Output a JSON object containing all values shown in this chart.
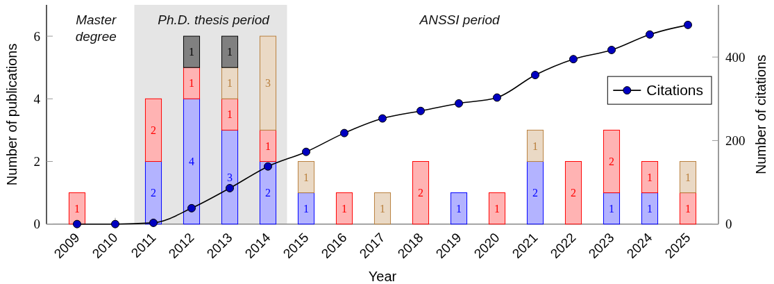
{
  "chart_data": {
    "type": "bar",
    "stacked": true,
    "x": [
      2009,
      2010,
      2011,
      2012,
      2013,
      2014,
      2015,
      2016,
      2017,
      2018,
      2019,
      2020,
      2021,
      2022,
      2023,
      2024,
      2025
    ],
    "xlim": [
      2008.2,
      2025.8
    ],
    "xticks": [
      2009,
      2010,
      2011,
      2012,
      2013,
      2014,
      2015,
      2016,
      2017,
      2018,
      2019,
      2020,
      2021,
      2022,
      2023,
      2024,
      2025
    ],
    "ylim": [
      0,
      7
    ],
    "yticks": [
      0,
      2,
      4,
      6
    ],
    "y2lim": [
      0,
      525
    ],
    "y2ticks": [
      0,
      200,
      400
    ],
    "xlabel": "Year",
    "ylabel": "Number of publications",
    "y2label": "Number of citations",
    "legend": "right",
    "marker": "circle",
    "series": [
      {
        "color": "#b3b3ff",
        "values": [
          null,
          null,
          2,
          4,
          3,
          2,
          1,
          null,
          null,
          null,
          1,
          null,
          2,
          null,
          1,
          1,
          null
        ],
        "value_labels": [
          null,
          null,
          "2",
          "4",
          "3",
          "2",
          "1",
          null,
          null,
          null,
          "1",
          null,
          "2",
          null,
          "1",
          "1",
          null
        ]
      },
      {
        "color": "#ffb3b3",
        "values": [
          1,
          null,
          2,
          1,
          1,
          1,
          null,
          1,
          null,
          2,
          null,
          1,
          null,
          2,
          2,
          1,
          1
        ],
        "value_labels": [
          "1",
          null,
          "2",
          "1",
          "1",
          "1",
          null,
          "1",
          null,
          "2",
          null,
          "1",
          null,
          "2",
          "2",
          "1",
          "1"
        ]
      },
      {
        "color": "#ead9c5",
        "values": [
          null,
          null,
          null,
          null,
          1,
          3,
          1,
          null,
          1,
          null,
          null,
          null,
          1,
          null,
          null,
          null,
          1
        ],
        "value_labels": [
          null,
          null,
          null,
          null,
          "1",
          "3",
          "1",
          null,
          "1",
          null,
          null,
          null,
          "1",
          null,
          null,
          null,
          "1"
        ]
      },
      {
        "color": "#808080",
        "values": [
          null,
          null,
          null,
          1,
          1,
          null,
          null,
          null,
          null,
          null,
          null,
          null,
          null,
          null,
          null,
          null,
          null
        ],
        "value_labels": [
          null,
          null,
          null,
          "1",
          "1",
          null,
          null,
          null,
          null,
          null,
          null,
          null,
          null,
          null,
          null,
          null,
          null
        ]
      },
      {
        "type": "line",
        "name": "Citations",
        "axis": "y2",
        "color": "#0000c0",
        "values": [
          0,
          0,
          3,
          38,
          86,
          138,
          173,
          218,
          253,
          271,
          289,
          303,
          357,
          395,
          417,
          454,
          477
        ]
      }
    ],
    "bands": [
      {
        "axis": "x",
        "from": 2010.5,
        "to": 2014.5,
        "label": "Ph.D. thesis period",
        "color": "#e5e5e5"
      }
    ],
    "annotations": [
      "Master degree",
      "ANSSI period"
    ]
  }
}
